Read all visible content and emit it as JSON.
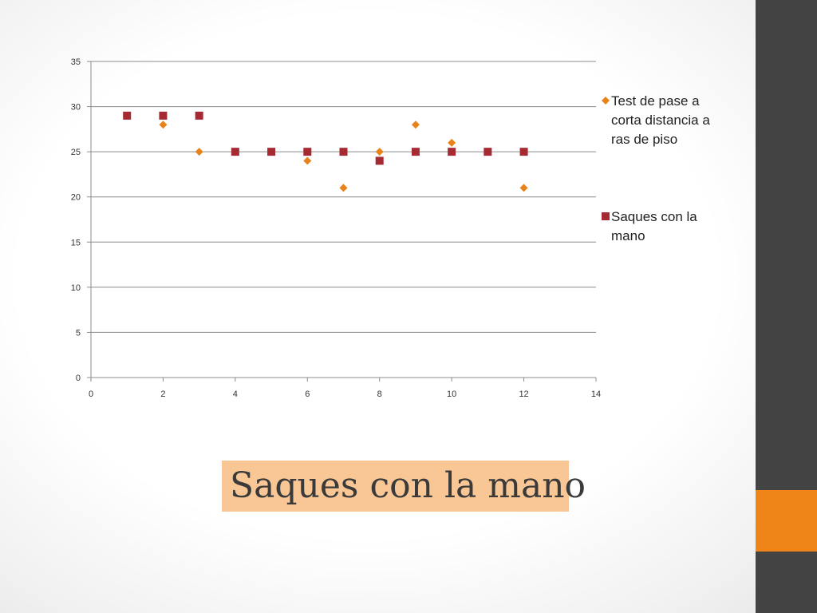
{
  "slide": {
    "caption": "Saques con la mano",
    "accent_color": "#ef8419",
    "sidebar_color": "#434343",
    "caption_background": "#f8c795"
  },
  "chart_data": {
    "type": "scatter",
    "title": "",
    "xlabel": "",
    "ylabel": "",
    "xlim": [
      0,
      14
    ],
    "ylim": [
      0,
      35
    ],
    "xticks": [
      "0",
      "2",
      "4",
      "6",
      "8",
      "10",
      "12",
      "14"
    ],
    "yticks": [
      "0",
      "5",
      "10",
      "15",
      "20",
      "25",
      "30",
      "35"
    ],
    "grid": "horizontal",
    "legend": "right",
    "series": [
      {
        "name": "Test de pase a corta distancia a ras de piso",
        "legend_lines": [
          "Test de pase a",
          "corta distancia a",
          "ras de piso"
        ],
        "marker": "diamond",
        "color": "#e8821b",
        "x": [
          1,
          2,
          3,
          4,
          5,
          6,
          7,
          8,
          9,
          10,
          11,
          12
        ],
        "y": [
          29,
          28,
          25,
          25,
          25,
          24,
          21,
          25,
          28,
          26,
          25,
          21
        ]
      },
      {
        "name": "Saques con la mano",
        "legend_lines": [
          "Saques con la",
          "mano"
        ],
        "marker": "square",
        "color": "#a52a34",
        "x": [
          1,
          2,
          3,
          4,
          5,
          6,
          7,
          8,
          9,
          10,
          11,
          12
        ],
        "y": [
          29,
          29,
          29,
          25,
          25,
          25,
          25,
          24,
          25,
          25,
          25,
          25
        ]
      }
    ]
  }
}
